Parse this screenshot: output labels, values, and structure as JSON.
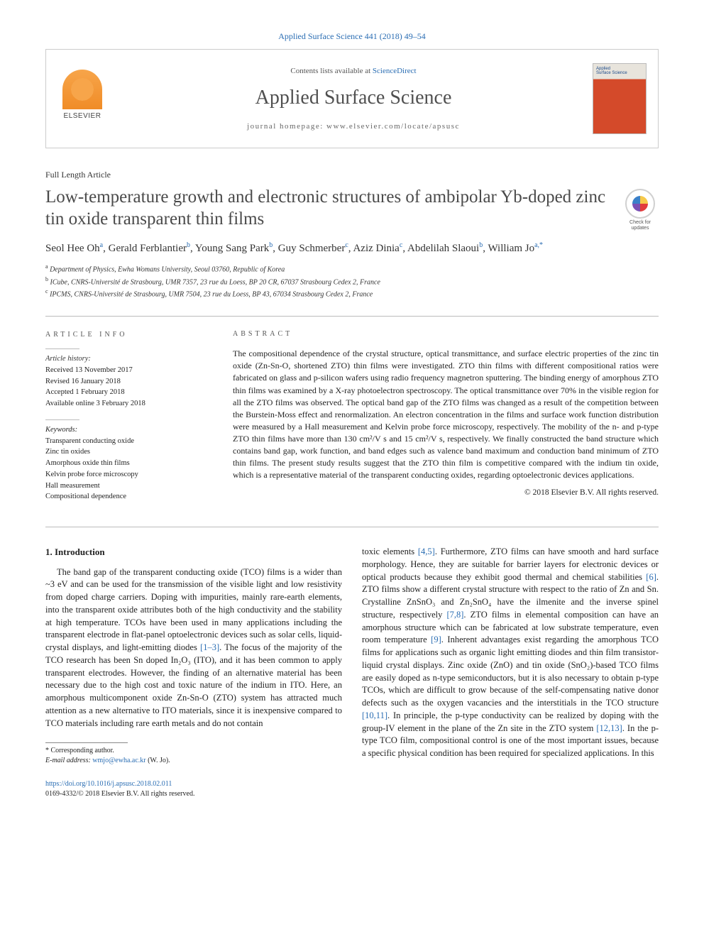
{
  "colors": {
    "link": "#2a6db3",
    "body_text": "#222222",
    "muted": "#555555",
    "rule": "#bbbbbb",
    "cover_red": "#d44a2a"
  },
  "typography": {
    "base_font": "Georgia, Times New Roman, serif",
    "title_fontsize_pt": 19,
    "journal_name_fontsize_pt": 21,
    "body_fontsize_pt": 9.5,
    "abstract_fontsize_pt": 9,
    "info_fontsize_pt": 8,
    "authors_fontsize_pt": 11
  },
  "citation": "Applied Surface Science 441 (2018) 49–54",
  "journal_box": {
    "contents_prefix": "Contents lists available at ",
    "contents_link": "ScienceDirect",
    "journal_name": "Applied Surface Science",
    "homepage": "journal homepage: www.elsevier.com/locate/apsusc",
    "publisher_word": "ELSEVIER",
    "cover_title_1": "Applied",
    "cover_title_2": "Surface Science"
  },
  "updates": {
    "line1": "Check for",
    "line2": "updates"
  },
  "article": {
    "type": "Full Length Article",
    "title": "Low-temperature growth and electronic structures of ambipolar Yb-doped zinc tin oxide transparent thin films",
    "authors_html": "Seol Hee Oh<sup>a</sup>, Gerald Ferblantier<sup>b</sup>, Young Sang Park<sup>b</sup>, Guy Schmerber<sup>c</sup>, Aziz Dinia<sup>c</sup>, Abdelilah Slaoui<sup>b</sup>, William Jo<sup>a,*</sup>",
    "affiliations": {
      "a": "Department of Physics, Ewha Womans University, Seoul 03760, Republic of Korea",
      "b": "ICube, CNRS-Université de Strasbourg, UMR 7357, 23 rue du Loess, BP 20 CR, 67037 Strasbourg Cedex 2, France",
      "c": "IPCMS, CNRS-Université de Strasbourg, UMR 7504, 23 rue du Loess, BP 43, 67034 Strasbourg Cedex 2, France"
    }
  },
  "info": {
    "section_head": "article info",
    "history_label": "Article history:",
    "received": "Received 13 November 2017",
    "revised": "Revised 16 January 2018",
    "accepted": "Accepted 1 February 2018",
    "available": "Available online 3 February 2018",
    "keywords_label": "Keywords:",
    "keywords": [
      "Transparent conducting oxide",
      "Zinc tin oxides",
      "Amorphous oxide thin films",
      "Kelvin probe force microscopy",
      "Hall measurement",
      "Compositional dependence"
    ]
  },
  "abstract": {
    "section_head": "abstract",
    "text": "The compositional dependence of the crystal structure, optical transmittance, and surface electric properties of the zinc tin oxide (Zn-Sn-O, shortened ZTO) thin films were investigated. ZTO thin films with different compositional ratios were fabricated on glass and p-silicon wafers using radio frequency magnetron sputtering. The binding energy of amorphous ZTO thin films was examined by a X-ray photoelectron spectroscopy. The optical transmittance over 70% in the visible region for all the ZTO films was observed. The optical band gap of the ZTO films was changed as a result of the competition between the Burstein-Moss effect and renormalization. An electron concentration in the films and surface work function distribution were measured by a Hall measurement and Kelvin probe force microscopy, respectively. The mobility of the n- and p-type ZTO thin films have more than 130 cm²/V s and 15 cm²/V s, respectively. We finally constructed the band structure which contains band gap, work function, and band edges such as valence band maximum and conduction band minimum of ZTO thin films. The present study results suggest that the ZTO thin film is competitive compared with the indium tin oxide, which is a representative material of the transparent conducting oxides, regarding optoelectronic devices applications.",
    "copyright": "© 2018 Elsevier B.V. All rights reserved."
  },
  "body": {
    "h1": "1. Introduction",
    "col1_p1": "The band gap of the transparent conducting oxide (TCO) films is a wider than ~3 eV and can be used for the transmission of the visible light and low resistivity from doped charge carriers. Doping with impurities, mainly rare-earth elements, into the transparent oxide attributes both of the high conductivity and the stability at high temperature. TCOs have been used in many applications including the transparent electrode in flat-panel optoelectronic devices such as solar cells, liquid-crystal displays, and light-emitting diodes ",
    "ref1": "[1–3]",
    "col1_p1b": ". The focus of the majority of the TCO research has been Sn doped In₂O₃ (ITO), and it has been common to apply transparent electrodes. However, the finding of an alternative material has been necessary due to the high cost and toxic nature of the indium in ITO. Here, an amorphous multicomponent oxide Zn-Sn-O (ZTO) system has attracted much attention as a new alternative to ITO materials, since it is inexpensive compared to TCO materials including rare earth metals and do not contain",
    "col2_p1a": "toxic elements ",
    "ref45": "[4,5]",
    "col2_p1b": ". Furthermore, ZTO films can have smooth and hard surface morphology. Hence, they are suitable for barrier layers for electronic devices or optical products because they exhibit good thermal and chemical stabilities ",
    "ref6": "[6]",
    "col2_p1c": ". ZTO films show a different crystal structure with respect to the ratio of Zn and Sn. Crystalline ZnSnO₃ and Zn₂SnO₄ have the ilmenite and the inverse spinel structure, respectively ",
    "ref78": "[7,8]",
    "col2_p1d": ". ZTO films in elemental composition can have an amorphous structure which can be fabricated at low substrate temperature, even room temperature ",
    "ref9": "[9]",
    "col2_p1e": ". Inherent advantages exist regarding the amorphous TCO films for applications such as organic light emitting diodes and thin film transistor-liquid crystal displays. Zinc oxide (ZnO) and tin oxide (SnO₂)-based TCO films are easily doped as n-type semiconductors, but it is also necessary to obtain p-type TCOs, which are difficult to grow because of the self-compensating native donor defects such as the oxygen vacancies and the interstitials in the TCO structure ",
    "ref1011": "[10,11]",
    "col2_p1f": ". In principle, the p-type conductivity can be realized by doping with the group-IV element in the plane of the Zn site in the ZTO system ",
    "ref1213": "[12,13]",
    "col2_p1g": ". In the p-type TCO film, compositional control is one of the most important issues, because a specific physical condition has been required for specialized applications. In this"
  },
  "footnote": {
    "corr": "* Corresponding author.",
    "email_label": "E-mail address: ",
    "email": "wmjo@ewha.ac.kr",
    "email_who": " (W. Jo)."
  },
  "footer": {
    "doi": "https://doi.org/10.1016/j.apsusc.2018.02.011",
    "issn_line": "0169-4332/© 2018 Elsevier B.V. All rights reserved."
  }
}
